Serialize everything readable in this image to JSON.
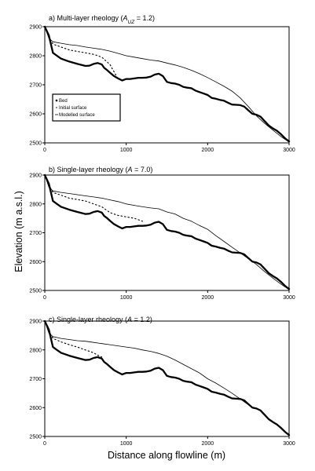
{
  "xlabel": "Distance along flowline (m)",
  "ylabel": "Elevation (m a.s.l.)",
  "legend": {
    "entries": [
      {
        "label": "Bed",
        "role": "bed"
      },
      {
        "label": "Initial surface",
        "role": "initial"
      },
      {
        "label": "Modelled surface",
        "role": "modelled"
      }
    ]
  },
  "chart_data": [
    {
      "type": "line",
      "title_main": "a) Multi-layer rheology (",
      "title_var": "A",
      "title_sub": "UZ",
      "title_tail": " = 1.2)",
      "xlim": [
        0,
        3000
      ],
      "ylim": [
        2500,
        2900
      ],
      "xticks": [
        0,
        1000,
        2000,
        3000
      ],
      "yticks": [
        2500,
        2600,
        2700,
        2800,
        2900
      ],
      "series": [
        {
          "name": "Bed",
          "role": "bed",
          "color": "#000000",
          "x": [
            0,
            50,
            100,
            150,
            200,
            300,
            400,
            500,
            550,
            600,
            650,
            700,
            730,
            760,
            800,
            850,
            900,
            950,
            1000,
            1050,
            1100,
            1150,
            1200,
            1250,
            1300,
            1350,
            1400,
            1450,
            1500,
            1550,
            1600,
            1650,
            1700,
            1750,
            1800,
            1850,
            1900,
            1950,
            2000,
            2050,
            2100,
            2150,
            2200,
            2250,
            2300,
            2350,
            2400,
            2450,
            2500,
            2550,
            2600,
            2650,
            2700,
            2750,
            2800,
            2850,
            2900,
            2950,
            3000
          ],
          "y": [
            2900,
            2870,
            2810,
            2800,
            2790,
            2780,
            2772,
            2765,
            2766,
            2772,
            2775,
            2770,
            2758,
            2752,
            2742,
            2730,
            2722,
            2715,
            2720,
            2720,
            2722,
            2724,
            2724,
            2725,
            2728,
            2735,
            2738,
            2730,
            2710,
            2706,
            2704,
            2700,
            2693,
            2690,
            2688,
            2680,
            2675,
            2670,
            2665,
            2655,
            2652,
            2648,
            2645,
            2638,
            2632,
            2631,
            2630,
            2625,
            2612,
            2600,
            2597,
            2590,
            2575,
            2560,
            2550,
            2542,
            2530,
            2516,
            2505
          ]
        },
        {
          "name": "Initial surface",
          "role": "initial",
          "color": "#000000",
          "x": [
            0,
            50,
            100,
            200,
            300,
            400,
            500,
            600,
            700,
            800,
            850,
            900
          ],
          "y": [
            2900,
            2865,
            2840,
            2830,
            2820,
            2815,
            2810,
            2805,
            2795,
            2770,
            2745,
            2720
          ]
        },
        {
          "name": "Modelled surface",
          "role": "modelled",
          "color": "#000000",
          "x": [
            0,
            50,
            100,
            200,
            300,
            400,
            500,
            600,
            700,
            800,
            900,
            1000,
            1100,
            1200,
            1300,
            1400,
            1500,
            1600,
            1700,
            1800,
            1900,
            2000,
            2100,
            2200,
            2300,
            2400,
            2500,
            2600,
            2700,
            2800,
            2900,
            3000
          ],
          "y": [
            2900,
            2860,
            2848,
            2843,
            2838,
            2835,
            2830,
            2826,
            2822,
            2816,
            2808,
            2800,
            2795,
            2790,
            2785,
            2782,
            2775,
            2768,
            2760,
            2750,
            2738,
            2725,
            2710,
            2695,
            2678,
            2655,
            2625,
            2593,
            2567,
            2544,
            2522,
            2503
          ]
        }
      ]
    },
    {
      "type": "line",
      "title_main": "b) Single-layer rheology (",
      "title_var": "A",
      "title_sub": "",
      "title_tail": " = 7.0)",
      "xlim": [
        0,
        3000
      ],
      "ylim": [
        2500,
        2900
      ],
      "xticks": [
        0,
        1000,
        2000,
        3000
      ],
      "yticks": [
        2500,
        2600,
        2700,
        2800,
        2900
      ],
      "series": [
        {
          "name": "Bed",
          "role": "bed",
          "color": "#000000",
          "x": [
            0,
            50,
            100,
            150,
            200,
            300,
            400,
            500,
            550,
            600,
            650,
            700,
            730,
            760,
            800,
            850,
            900,
            950,
            1000,
            1050,
            1100,
            1150,
            1200,
            1250,
            1300,
            1350,
            1400,
            1450,
            1500,
            1550,
            1600,
            1650,
            1700,
            1750,
            1800,
            1850,
            1900,
            1950,
            2000,
            2050,
            2100,
            2150,
            2200,
            2250,
            2300,
            2350,
            2400,
            2450,
            2500,
            2550,
            2600,
            2650,
            2700,
            2750,
            2800,
            2850,
            2900,
            2950,
            3000
          ],
          "y": [
            2900,
            2870,
            2810,
            2800,
            2790,
            2780,
            2772,
            2765,
            2766,
            2772,
            2775,
            2770,
            2758,
            2752,
            2742,
            2730,
            2722,
            2715,
            2720,
            2720,
            2722,
            2724,
            2724,
            2725,
            2728,
            2735,
            2738,
            2730,
            2710,
            2706,
            2704,
            2700,
            2693,
            2690,
            2688,
            2680,
            2675,
            2670,
            2665,
            2655,
            2652,
            2648,
            2645,
            2638,
            2632,
            2631,
            2630,
            2625,
            2612,
            2600,
            2597,
            2590,
            2575,
            2560,
            2550,
            2542,
            2530,
            2516,
            2505
          ]
        },
        {
          "name": "Initial surface",
          "role": "initial",
          "color": "#000000",
          "x": [
            0,
            50,
            100,
            200,
            300,
            400,
            500,
            600,
            700,
            800,
            900,
            1000,
            1100,
            1200
          ],
          "y": [
            2900,
            2865,
            2840,
            2830,
            2820,
            2815,
            2810,
            2800,
            2790,
            2770,
            2760,
            2755,
            2750,
            2740
          ]
        },
        {
          "name": "Modelled surface",
          "role": "modelled",
          "color": "#000000",
          "x": [
            0,
            50,
            100,
            200,
            300,
            400,
            500,
            600,
            700,
            800,
            900,
            1000,
            1100,
            1200,
            1300,
            1400,
            1500,
            1600,
            1700,
            1800,
            1900,
            2000,
            2100,
            2200,
            2300,
            2400,
            2500,
            2600,
            2700,
            2800,
            2900,
            3000
          ],
          "y": [
            2900,
            2858,
            2845,
            2840,
            2836,
            2832,
            2828,
            2824,
            2820,
            2814,
            2808,
            2800,
            2795,
            2790,
            2786,
            2783,
            2772,
            2765,
            2750,
            2740,
            2725,
            2712,
            2690,
            2670,
            2650,
            2630,
            2610,
            2590,
            2565,
            2543,
            2522,
            2503
          ]
        }
      ]
    },
    {
      "type": "line",
      "title_main": "c) Single-layer rheology (",
      "title_var": "A",
      "title_sub": "",
      "title_tail": " = 1.2)",
      "xlim": [
        0,
        3000
      ],
      "ylim": [
        2500,
        2900
      ],
      "xticks": [
        0,
        1000,
        2000,
        3000
      ],
      "yticks": [
        2500,
        2600,
        2700,
        2800,
        2900
      ],
      "series": [
        {
          "name": "Bed",
          "role": "bed",
          "color": "#000000",
          "x": [
            0,
            50,
            100,
            150,
            200,
            300,
            400,
            500,
            550,
            600,
            650,
            700,
            730,
            760,
            800,
            850,
            900,
            950,
            1000,
            1050,
            1100,
            1150,
            1200,
            1250,
            1300,
            1350,
            1400,
            1450,
            1500,
            1550,
            1600,
            1650,
            1700,
            1750,
            1800,
            1850,
            1900,
            1950,
            2000,
            2050,
            2100,
            2150,
            2200,
            2250,
            2300,
            2350,
            2400,
            2450,
            2500,
            2550,
            2600,
            2650,
            2700,
            2750,
            2800,
            2850,
            2900,
            2950,
            3000
          ],
          "y": [
            2900,
            2870,
            2810,
            2800,
            2790,
            2780,
            2772,
            2765,
            2766,
            2772,
            2775,
            2770,
            2758,
            2752,
            2742,
            2730,
            2722,
            2715,
            2720,
            2720,
            2722,
            2724,
            2724,
            2725,
            2728,
            2735,
            2738,
            2730,
            2710,
            2706,
            2704,
            2700,
            2693,
            2690,
            2688,
            2680,
            2675,
            2670,
            2665,
            2655,
            2652,
            2648,
            2645,
            2638,
            2632,
            2631,
            2630,
            2625,
            2612,
            2600,
            2597,
            2590,
            2575,
            2560,
            2550,
            2542,
            2530,
            2516,
            2505
          ]
        },
        {
          "name": "Initial surface",
          "role": "initial",
          "color": "#000000",
          "x": [
            0,
            50,
            100,
            200,
            300,
            400,
            500,
            600,
            650,
            700
          ],
          "y": [
            2900,
            2865,
            2840,
            2828,
            2818,
            2810,
            2800,
            2790,
            2782,
            2775
          ]
        },
        {
          "name": "Modelled surface",
          "role": "modelled",
          "color": "#000000",
          "x": [
            0,
            50,
            100,
            200,
            300,
            400,
            500,
            600,
            700,
            800,
            900,
            1000,
            1100,
            1200,
            1300,
            1400,
            1500,
            1600,
            1700,
            1800,
            1900,
            2000,
            2100,
            2200,
            2300,
            2400,
            2450,
            2500
          ],
          "y": [
            2900,
            2858,
            2846,
            2840,
            2836,
            2832,
            2830,
            2826,
            2822,
            2818,
            2814,
            2810,
            2806,
            2800,
            2795,
            2788,
            2778,
            2765,
            2750,
            2735,
            2720,
            2700,
            2685,
            2668,
            2650,
            2630,
            2620,
            2610
          ]
        }
      ]
    }
  ]
}
